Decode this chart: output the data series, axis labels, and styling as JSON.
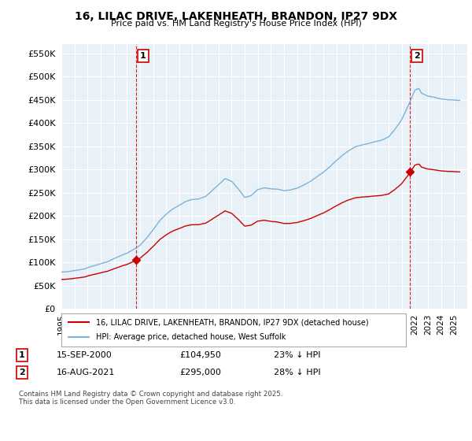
{
  "title": "16, LILAC DRIVE, LAKENHEATH, BRANDON, IP27 9DX",
  "subtitle": "Price paid vs. HM Land Registry's House Price Index (HPI)",
  "hpi_color": "#7ab4d8",
  "price_color": "#cc0000",
  "bg_color": "#ffffff",
  "plot_bg_color": "#e8f0f8",
  "grid_color": "#ffffff",
  "ylim": [
    0,
    570000
  ],
  "yticks": [
    0,
    50000,
    100000,
    150000,
    200000,
    250000,
    300000,
    350000,
    400000,
    450000,
    500000,
    550000
  ],
  "ytick_labels": [
    "£0",
    "£50K",
    "£100K",
    "£150K",
    "£200K",
    "£250K",
    "£300K",
    "£350K",
    "£400K",
    "£450K",
    "£500K",
    "£550K"
  ],
  "xmin": 1995,
  "xmax": 2026,
  "sale1_year": 2000.71,
  "sale1_price": 104950,
  "sale2_year": 2021.62,
  "sale2_price": 295000,
  "legend_house": "16, LILAC DRIVE, LAKENHEATH, BRANDON, IP27 9DX (detached house)",
  "legend_hpi": "HPI: Average price, detached house, West Suffolk",
  "footnote": "Contains HM Land Registry data © Crown copyright and database right 2025.\nThis data is licensed under the Open Government Licence v3.0."
}
